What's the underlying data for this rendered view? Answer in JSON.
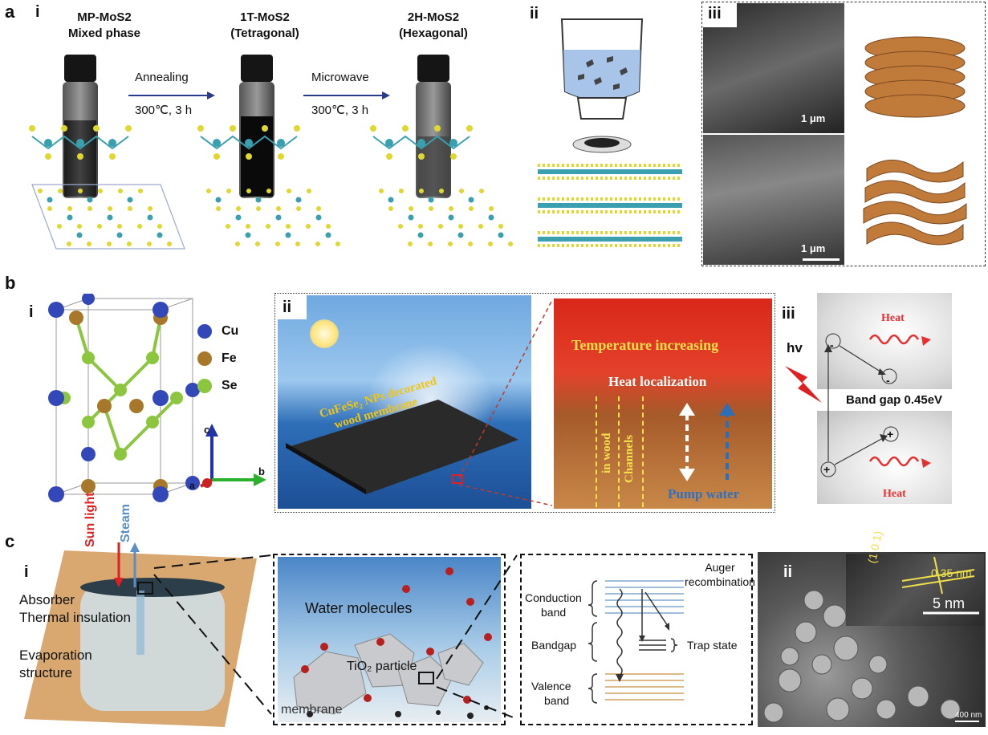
{
  "panel_a": {
    "label": "a",
    "sub_i": "i",
    "sub_ii": "ii",
    "sub_iii": "iii",
    "phase1_line1": "MP-MoS2",
    "phase1_line2": "Mixed phase",
    "phase2_line1": "1T-MoS2",
    "phase2_line2": "(Tetragonal)",
    "phase3_line1": "2H-MoS2",
    "phase3_line2": "(Hexagonal)",
    "arrow1_top": "Annealing",
    "arrow1_bottom": "300℃, 3 h",
    "arrow2_top": "Microwave",
    "arrow2_bottom": "300℃, 3 h",
    "sem_scale_top": "1 μm",
    "sem_scale_bottom": "1 μm"
  },
  "panel_b": {
    "label": "b",
    "sub_i": "i",
    "sub_ii": "ii",
    "sub_iii": "iii",
    "legend": [
      "Cu",
      "Fe",
      "Se"
    ],
    "axis_c": "c",
    "axis_b": "b",
    "axis_a": "a",
    "membrane_label_line1": "CuFeSe₂ NPs decorated",
    "membrane_label_line2": "wood membrane",
    "temperature": "Temperature increasing",
    "heat_localization": "Heat localization",
    "channels": "Channels",
    "in_wood": "in wood",
    "pump_water": "Pump water",
    "hv": "hv",
    "heat_top": "Heat",
    "heat_bottom": "Heat",
    "band_gap": "Band gap 0.45eV",
    "minus": "-",
    "plus": "+"
  },
  "panel_c": {
    "label": "c",
    "sub_i": "i",
    "sub_ii": "ii",
    "sun_light": "Sun light",
    "steam": "Steam",
    "absorber": "Absorber",
    "thermal_insulation": "Thermal insulation",
    "evaporation_line1": "Evaporation",
    "evaporation_line2": "structure",
    "water_molecules": "Water molecules",
    "tio2": "TiO₂ particle",
    "membrane": "membrane",
    "conduction_line1": "Conduction",
    "conduction_line2": "band",
    "bandgap": "Bandgap",
    "valence_line1": "Valence",
    "valence_line2": "band",
    "auger_line1": "Auger",
    "auger_line2": "recombination",
    "trap_state": "Trap state",
    "hkl": "(1 0 1)",
    "spacing": "0.35 nm",
    "scale_inset": "5 nm",
    "scale_main": "400 nm"
  }
}
